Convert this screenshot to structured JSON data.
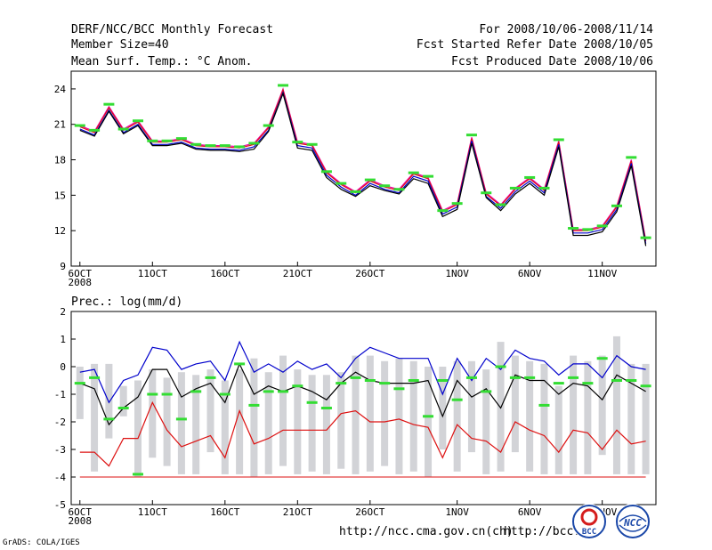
{
  "header": {
    "title": "DERF/NCC/BCC Monthly Forecast",
    "member_size": "Member Size=40",
    "variable": "Mean Surf. Temp.: °C Anom.",
    "period": "For 2008/10/06-2008/11/14",
    "started": "Fcst Started Refer Date 2008/10/05",
    "produced": "Fcst Produced Date 2008/10/06"
  },
  "footer": {
    "url1": "http://ncc.cma.gov.cn(ch)",
    "url2": "http://bcc.c",
    "credit": "GrADS: COLA/IGES",
    "logo1": "BCC",
    "logo2": "NCC"
  },
  "colors": {
    "blue": "#0000cc",
    "red": "#dd1111",
    "green": "#33dd33",
    "magenta": "#ee00aa",
    "black": "#000000",
    "gray": "#d2d3d7"
  },
  "chart_data": [
    {
      "type": "line",
      "title": "Mean Surf. Temp.: °C Anom.",
      "ylim": [
        9,
        25.5
      ],
      "yticks": [
        9,
        12,
        15,
        18,
        21,
        24
      ],
      "xlim": [
        -0.6,
        39.7
      ],
      "xticks": [
        {
          "x": 0,
          "label": "6OCT",
          "sub": "2008"
        },
        {
          "x": 5,
          "label": "11OCT"
        },
        {
          "x": 10,
          "label": "16OCT"
        },
        {
          "x": 15,
          "label": "21OCT"
        },
        {
          "x": 20,
          "label": "26OCT"
        },
        {
          "x": 26,
          "label": "1NOV"
        },
        {
          "x": 31,
          "label": "6NOV"
        },
        {
          "x": 36,
          "label": "11NOV"
        }
      ],
      "series": [
        {
          "name": "max",
          "color": "#ee00aa",
          "values": [
            20.9,
            20.4,
            22.5,
            20.6,
            21.3,
            19.6,
            19.6,
            19.8,
            19.3,
            19.2,
            19.2,
            19.1,
            19.4,
            20.8,
            24.0,
            19.5,
            19.3,
            17.0,
            16.0,
            15.3,
            16.3,
            15.8,
            15.5,
            16.9,
            16.5,
            13.7,
            14.3,
            19.9,
            15.2,
            14.2,
            15.6,
            16.5,
            15.5,
            19.6,
            12.1,
            12.1,
            12.4,
            14.1,
            18.0,
            11.2
          ]
        },
        {
          "name": "upper",
          "color": "#dd1111",
          "values": [
            20.8,
            20.3,
            22.4,
            20.5,
            21.2,
            19.5,
            19.5,
            19.7,
            19.2,
            19.1,
            19.1,
            19.0,
            19.3,
            20.7,
            23.9,
            19.4,
            19.2,
            16.9,
            15.9,
            15.2,
            16.2,
            15.7,
            15.4,
            16.8,
            16.4,
            13.6,
            14.2,
            19.8,
            15.1,
            14.1,
            15.5,
            16.4,
            15.4,
            19.5,
            12.0,
            12.0,
            12.3,
            14.0,
            17.9,
            11.1
          ]
        },
        {
          "name": "lower",
          "color": "#0000cc",
          "values": [
            20.6,
            20.1,
            22.2,
            20.3,
            21.0,
            19.3,
            19.3,
            19.5,
            19.0,
            18.9,
            18.9,
            18.8,
            19.1,
            20.5,
            23.7,
            19.2,
            19.0,
            16.7,
            15.7,
            15.0,
            16.0,
            15.5,
            15.2,
            16.6,
            16.2,
            13.4,
            14.0,
            19.6,
            14.9,
            13.9,
            15.3,
            16.2,
            15.2,
            19.3,
            11.8,
            11.8,
            12.1,
            13.8,
            17.7,
            10.9
          ]
        },
        {
          "name": "min",
          "color": "#000000",
          "values": [
            20.5,
            20.0,
            22.1,
            20.2,
            20.9,
            19.2,
            19.2,
            19.4,
            18.9,
            18.8,
            18.8,
            18.7,
            18.9,
            20.4,
            23.6,
            19.0,
            18.8,
            16.5,
            15.5,
            14.9,
            15.8,
            15.4,
            15.1,
            16.4,
            16.0,
            13.2,
            13.8,
            19.4,
            14.8,
            13.7,
            15.1,
            16.0,
            15.0,
            19.1,
            11.6,
            11.6,
            11.9,
            13.6,
            17.5,
            10.7
          ]
        }
      ],
      "obs_marks": [
        20.9,
        20.5,
        22.7,
        20.6,
        21.3,
        19.6,
        19.6,
        19.8,
        19.3,
        19.2,
        19.2,
        19.1,
        19.4,
        20.9,
        24.3,
        19.5,
        19.3,
        17.0,
        16.0,
        15.3,
        16.3,
        15.8,
        15.5,
        16.9,
        16.6,
        13.7,
        14.3,
        20.1,
        15.2,
        14.2,
        15.6,
        16.5,
        15.6,
        19.7,
        12.2,
        12.1,
        12.4,
        14.1,
        18.2,
        11.4
      ]
    },
    {
      "type": "line",
      "title": "Prec.: log(mm/d)",
      "ylim": [
        -5,
        2
      ],
      "yticks": [
        -5,
        -4,
        -3,
        -2,
        -1,
        0,
        1,
        2
      ],
      "xlim": [
        -0.6,
        39.7
      ],
      "xticks": [
        {
          "x": 0,
          "label": "6OCT",
          "sub": "2008"
        },
        {
          "x": 5,
          "label": "11OCT"
        },
        {
          "x": 10,
          "label": "16OCT"
        },
        {
          "x": 15,
          "label": "21OCT"
        },
        {
          "x": 20,
          "label": "26OCT"
        },
        {
          "x": 26,
          "label": "1NOV"
        },
        {
          "x": 31,
          "label": "6NOV"
        },
        {
          "x": 36,
          "label": "11NOV"
        }
      ],
      "bars": {
        "color": "#d2d3d7",
        "low": [
          -1.9,
          -3.8,
          -2.6,
          -1.8,
          -4.0,
          -3.3,
          -3.6,
          -3.9,
          -3.9,
          -3.1,
          -3.9,
          -3.9,
          -4.0,
          -3.9,
          -3.6,
          -3.9,
          -3.8,
          -3.9,
          -3.7,
          -3.9,
          -3.8,
          -3.6,
          -3.9,
          -3.8,
          -4.0,
          -3.0,
          -3.8,
          -3.1,
          -3.9,
          -3.8,
          -3.1,
          -3.8,
          -3.9,
          -3.9,
          -3.9,
          -3.9,
          -3.2,
          -3.9,
          -3.9,
          -3.9
        ],
        "high": [
          0.0,
          0.1,
          0.1,
          -0.7,
          -0.5,
          -0.1,
          -0.4,
          -0.2,
          -0.3,
          -0.1,
          -0.5,
          -0.1,
          0.3,
          -0.2,
          0.4,
          -0.1,
          -0.3,
          -0.3,
          -0.2,
          0.4,
          0.4,
          0.2,
          0.3,
          0.2,
          0.0,
          0.0,
          0.2,
          0.2,
          -0.1,
          0.9,
          0.4,
          0.2,
          0.1,
          -0.7,
          0.4,
          0.2,
          0.4,
          1.1,
          0.1,
          0.1
        ]
      },
      "series": [
        {
          "name": "upper",
          "color": "#0000cc",
          "values": [
            -0.2,
            -0.1,
            -1.3,
            -0.5,
            -0.3,
            0.7,
            0.6,
            -0.1,
            0.1,
            0.2,
            -0.5,
            0.9,
            -0.2,
            0.1,
            -0.2,
            0.2,
            -0.1,
            0.1,
            -0.4,
            0.3,
            0.7,
            0.5,
            0.3,
            0.3,
            0.3,
            -1.0,
            0.3,
            -0.5,
            0.3,
            -0.1,
            0.6,
            0.3,
            0.2,
            -0.3,
            0.1,
            0.1,
            -0.4,
            0.4,
            0.0,
            -0.1
          ]
        },
        {
          "name": "mean",
          "color": "#000000",
          "values": [
            -0.6,
            -0.8,
            -2.1,
            -1.5,
            -1.1,
            -0.1,
            -0.1,
            -1.1,
            -0.8,
            -0.6,
            -1.3,
            0.1,
            -1.0,
            -0.7,
            -0.9,
            -0.7,
            -0.9,
            -1.2,
            -0.6,
            -0.2,
            -0.5,
            -0.6,
            -0.6,
            -0.6,
            -0.5,
            -1.8,
            -0.5,
            -1.1,
            -0.8,
            -1.5,
            -0.3,
            -0.5,
            -0.5,
            -1.0,
            -0.6,
            -0.7,
            -1.2,
            -0.3,
            -0.6,
            -0.9
          ]
        },
        {
          "name": "lower",
          "color": "#dd1111",
          "values": [
            -3.1,
            -3.1,
            -3.6,
            -2.6,
            -2.6,
            -1.3,
            -2.3,
            -2.9,
            -2.7,
            -2.5,
            -3.3,
            -1.6,
            -2.8,
            -2.6,
            -2.3,
            -2.3,
            -2.3,
            -2.3,
            -1.7,
            -1.6,
            -2.0,
            -2.0,
            -1.9,
            -2.1,
            -2.2,
            -3.3,
            -2.1,
            -2.6,
            -2.7,
            -3.1,
            -2.0,
            -2.3,
            -2.5,
            -3.1,
            -2.3,
            -2.4,
            -3.0,
            -2.3,
            -2.8,
            -2.7
          ]
        }
      ],
      "floor_line": -4,
      "obs_marks": [
        -0.6,
        -0.4,
        -1.9,
        -1.5,
        -3.9,
        -1.0,
        -1.0,
        -1.9,
        -0.9,
        -0.4,
        -1.0,
        0.1,
        -1.4,
        -0.9,
        -0.9,
        -0.7,
        -1.3,
        -1.5,
        -0.6,
        -0.4,
        -0.5,
        -0.6,
        -0.8,
        -0.5,
        -1.8,
        -0.5,
        -1.2,
        -0.4,
        -0.9,
        0.0,
        -0.4,
        -0.4,
        -1.4,
        -0.6,
        -0.4,
        -0.6,
        0.3,
        -0.5,
        -0.5,
        -0.7
      ]
    }
  ]
}
